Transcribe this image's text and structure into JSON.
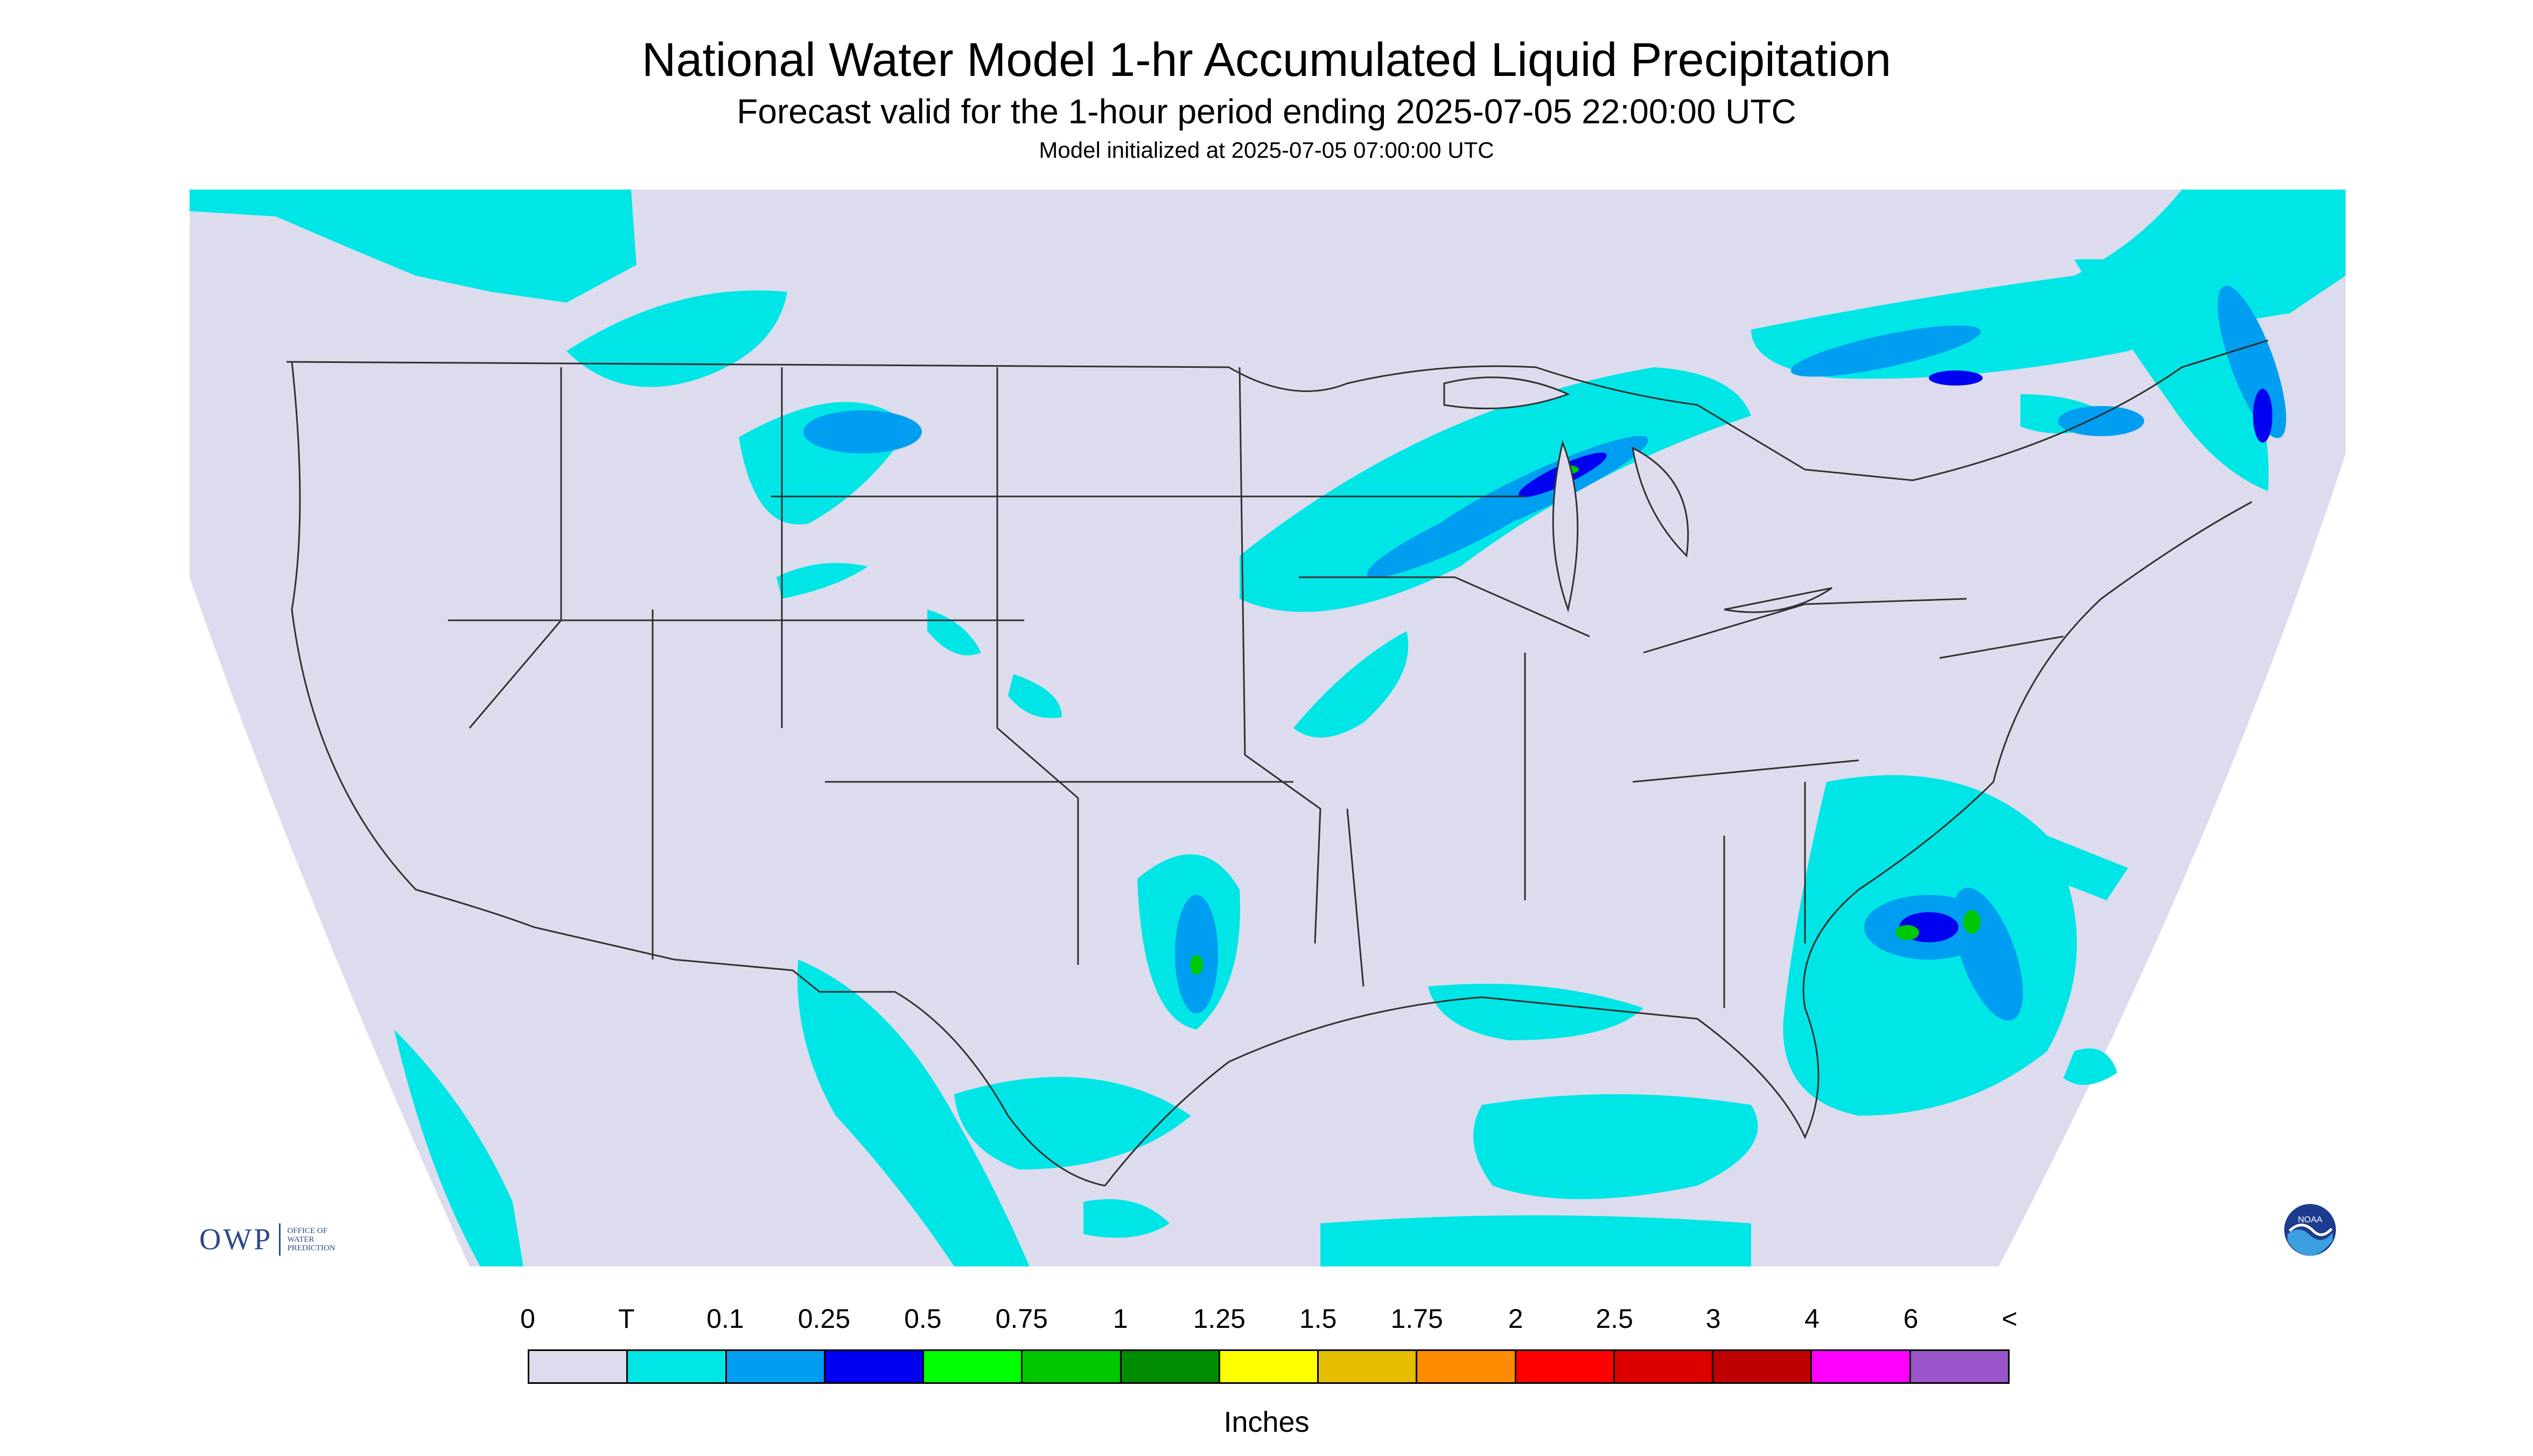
{
  "title": "National Water Model 1-hr Accumulated Liquid Precipitation",
  "subtitle": "Forecast valid for the 1-hour period ending 2025-07-05 22:00:00 UTC",
  "init_line": "Model initialized at 2025-07-05 07:00:00 UTC",
  "legend": {
    "tick_labels": [
      "0",
      "T",
      "0.1",
      "0.25",
      "0.5",
      "0.75",
      "1",
      "1.25",
      "1.5",
      "1.75",
      "2",
      "2.5",
      "3",
      "4",
      "6",
      "<"
    ],
    "colors": [
      "#dcdcee",
      "#00e6e6",
      "#009ef0",
      "#0000f0",
      "#00ff00",
      "#00c800",
      "#008c00",
      "#ffff00",
      "#e6be00",
      "#ff8c00",
      "#ff0000",
      "#dc0000",
      "#be0000",
      "#ff00ff",
      "#9955c9"
    ],
    "units": "Inches"
  },
  "map": {
    "background_color": "#dcdcee",
    "outside_color": "#ffffff",
    "precip_light_color": "#00e6e6",
    "precip_medium_color": "#009ef0",
    "precip_heavy_color": "#0000f0",
    "precip_peak_color": "#00c800",
    "boundary_color": "#303030"
  },
  "logos": {
    "owp_text": "OWP",
    "owp_subtext": [
      "OFFICE OF",
      "WATER",
      "PREDICTION"
    ],
    "noaa_text": "NOAA"
  }
}
